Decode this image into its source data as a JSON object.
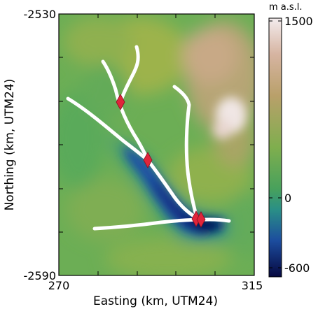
{
  "map": {
    "xlabel": "Easting (km, UTM24)",
    "ylabel": "Northing (km, UTM24)",
    "x_ticks": [
      "270",
      "315"
    ],
    "y_ticks": [
      "-2530",
      "-2590"
    ],
    "x_range_km": [
      270,
      315
    ],
    "y_range_km": [
      -2590,
      -2530
    ],
    "colors": {
      "deep_low": "#0a0c58",
      "low": "#1f3b9c",
      "teal": "#1e8a8c",
      "green": "#52a85a",
      "olive": "#9ab14a",
      "tan": "#c7a87e",
      "peak": "#f3ecee",
      "flowline": "#ffffff",
      "marker": "#e0253b"
    }
  },
  "colorbar": {
    "title": "m a.s.l.",
    "ticks": [
      "1500",
      "0",
      "-600"
    ],
    "tick_values": [
      1500,
      0,
      -600
    ],
    "range": [
      -600,
      1500
    ]
  }
}
